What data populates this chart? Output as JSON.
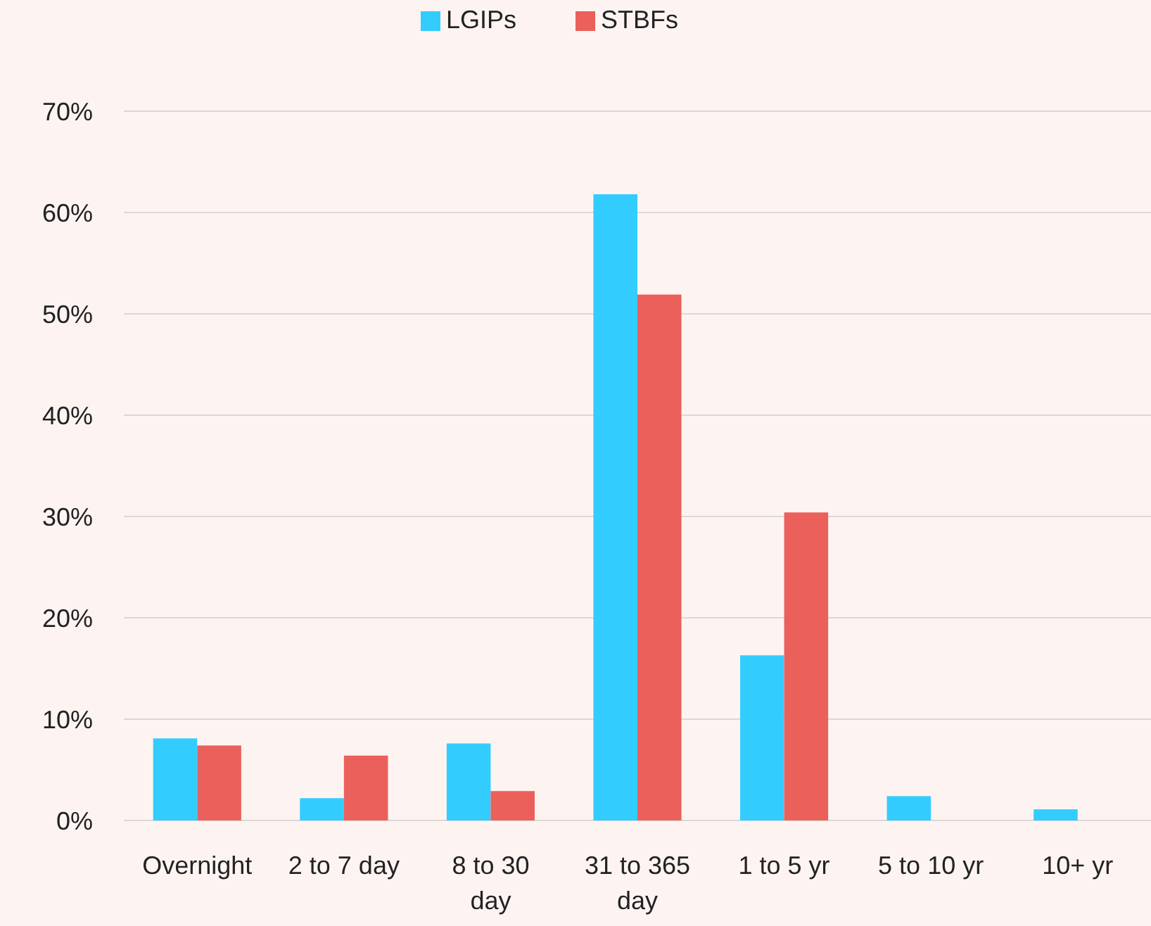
{
  "chart_data": {
    "type": "bar",
    "categories": [
      "Overnight",
      "2 to 7 day",
      "8 to 30 day",
      "31 to 365 day",
      "1 to 5 yr",
      "5 to 10 yr",
      "10+ yr"
    ],
    "series": [
      {
        "name": "LGIPs",
        "color": "#33ccff",
        "values": [
          8.1,
          2.2,
          7.6,
          61.8,
          16.3,
          2.4,
          1.1
        ]
      },
      {
        "name": "STBFs",
        "color": "#eb605b",
        "values": [
          7.4,
          6.4,
          2.9,
          51.9,
          30.4,
          null,
          null
        ]
      }
    ],
    "ylim": [
      0,
      70
    ],
    "yticks": [
      {
        "value": 0,
        "label": "0%"
      },
      {
        "value": 10,
        "label": "10%"
      },
      {
        "value": 20,
        "label": "20%"
      },
      {
        "value": 30,
        "label": "30%"
      },
      {
        "value": 40,
        "label": "40%"
      },
      {
        "value": 50,
        "label": "50%"
      },
      {
        "value": 60,
        "label": "60%"
      },
      {
        "value": 70,
        "label": "70%"
      }
    ],
    "grid": "y",
    "legend": "top"
  }
}
